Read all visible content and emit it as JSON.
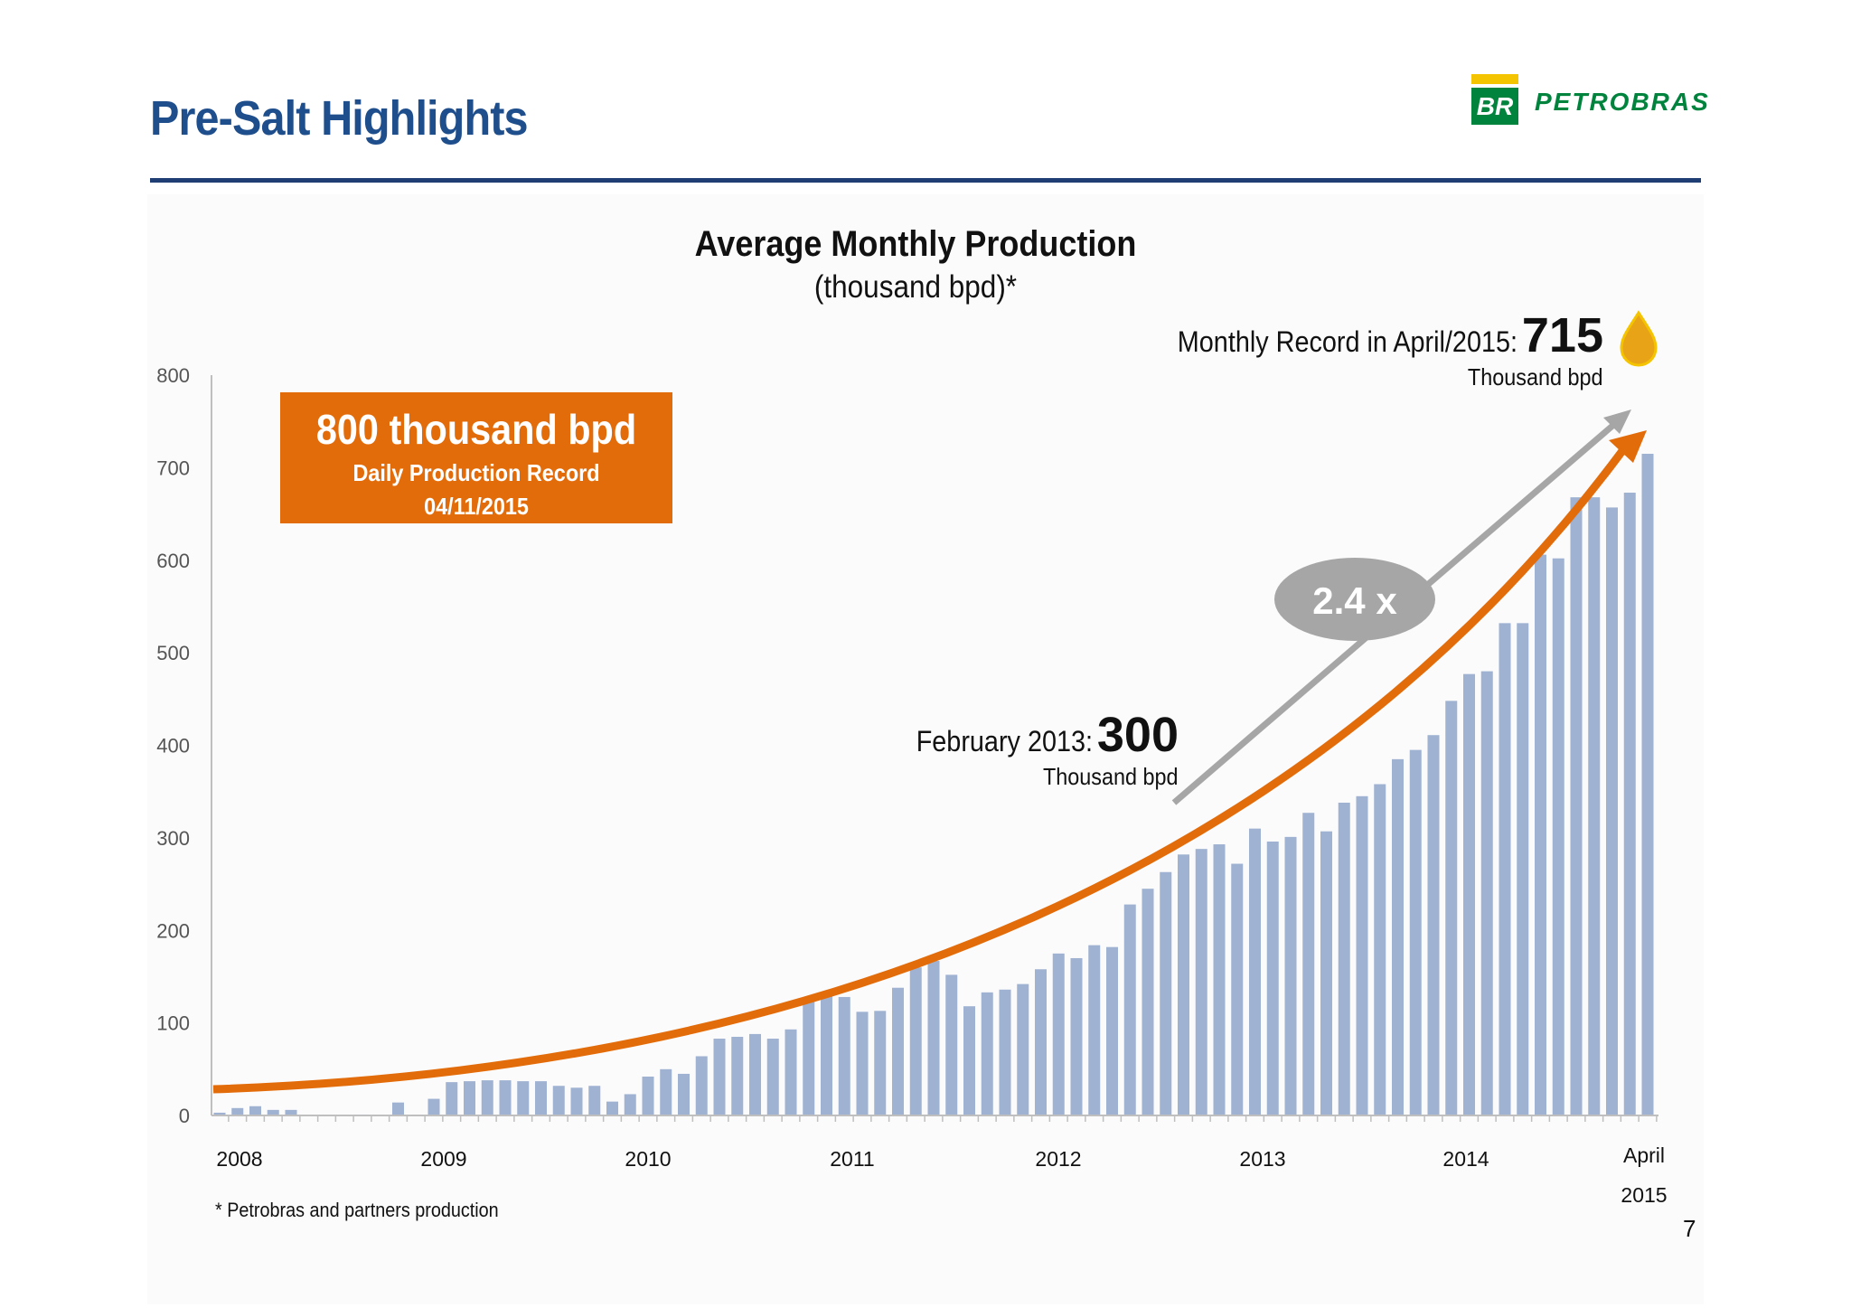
{
  "header": {
    "title": "Pre-Salt Highlights",
    "logo": {
      "mark": "BR",
      "wordmark": "PETROBRAS",
      "green": "#00843d",
      "yellow": "#f5c400"
    }
  },
  "callouts": {
    "daily_record": {
      "headline": "800 thousand bpd",
      "line1": "Daily Production Record",
      "line2": "04/11/2015",
      "color": "#e36c0a"
    },
    "feb2013": {
      "label": "February 2013:",
      "value": "300",
      "unit": "Thousand bpd"
    },
    "monthly_record": {
      "label": "Monthly Record in April/2015:",
      "value": "715",
      "unit": "Thousand bpd",
      "icon": "oil-drop-icon",
      "icon_color": "#e8a317"
    },
    "growth": {
      "label": "2.4 x",
      "color": "#a6a6a6"
    }
  },
  "footnote": "* Petrobras and partners production",
  "page_number": "7",
  "chart_data": {
    "type": "bar",
    "title": "Average Monthly Production",
    "subtitle": "(thousand bpd)*",
    "ylim": [
      0,
      800
    ],
    "yticks": [
      0,
      100,
      200,
      300,
      400,
      500,
      600,
      700,
      800
    ],
    "xtick_labels": [
      "2008",
      "2009",
      "2010",
      "2011",
      "2012",
      "2013",
      "2014",
      "April",
      "2015"
    ],
    "grid": false,
    "bar_color": "#9fb2d1",
    "trend_color": "#e36c0a",
    "values": [
      3,
      8,
      10,
      6,
      6,
      0,
      0,
      0,
      1,
      0,
      14,
      0,
      18,
      36,
      37,
      38,
      38,
      37,
      37,
      32,
      30,
      32,
      15,
      23,
      42,
      50,
      45,
      64,
      83,
      85,
      88,
      83,
      93,
      128,
      129,
      128,
      112,
      113,
      138,
      160,
      167,
      152,
      118,
      133,
      136,
      142,
      158,
      175,
      170,
      184,
      182,
      228,
      245,
      263,
      282,
      288,
      293,
      272,
      310,
      296,
      301,
      327,
      307,
      338,
      345,
      358,
      385,
      395,
      411,
      448,
      477,
      480,
      532,
      532,
      606,
      602,
      668,
      668,
      657,
      673,
      715
    ]
  }
}
